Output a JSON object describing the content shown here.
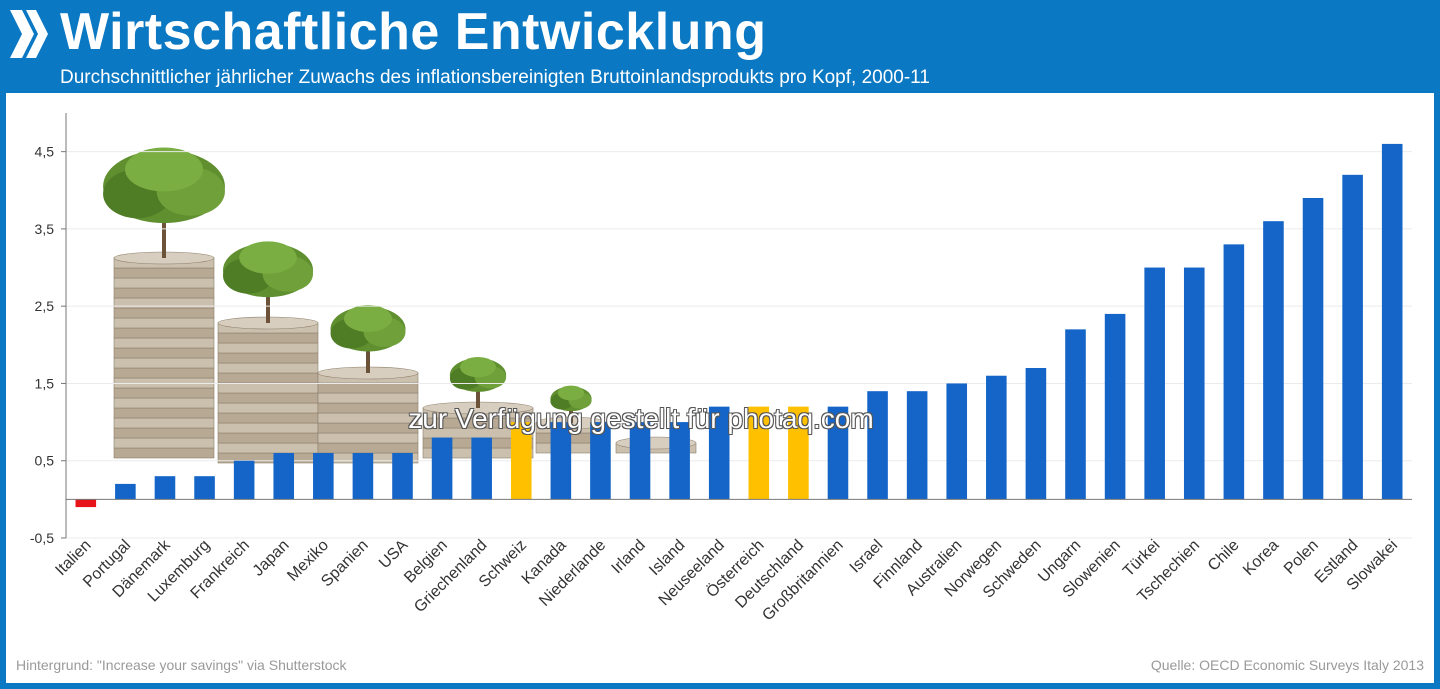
{
  "header": {
    "title": "Wirtschaftliche Entwicklung",
    "subtitle": "Durchschnittlicher jährlicher Zuwachs des inflationsbereinigten Bruttoinlandsprodukts pro Kopf, 2000-11"
  },
  "footer": {
    "credit_left": "Hintergrund: \"Increase your savings\" via Shutterstock",
    "credit_right": "Quelle: OECD  Economic Surveys Italy 2013"
  },
  "watermark": "zur Verfügung gestellt für photaq.com",
  "colors": {
    "frame": "#0a78c2",
    "bar_default": "#1565c8",
    "bar_highlight": "#ffc000",
    "bar_negative": "#e8141c"
  },
  "background_art": "coin-stacks-with-trees",
  "chart_data": {
    "type": "bar",
    "title": "Wirtschaftliche Entwicklung",
    "subtitle": "Durchschnittlicher jährlicher Zuwachs des inflationsbereinigten Bruttoinlandsprodukts pro Kopf, 2000-11",
    "xlabel": "",
    "ylabel": "",
    "ylim": [
      -0.5,
      5
    ],
    "yticks": [
      -0.5,
      0.5,
      1.5,
      2.5,
      3.5,
      4.5
    ],
    "ytick_labels": [
      "-0,5",
      "0,5",
      "1,5",
      "2,5",
      "3,5",
      "4,5"
    ],
    "grid": true,
    "legend": "none",
    "categories": [
      "Italien",
      "Portugal",
      "Dänemark",
      "Luxemburg",
      "Frankreich",
      "Japan",
      "Mexiko",
      "Spanien",
      "USA",
      "Belgien",
      "Griechenland",
      "Schweiz",
      "Kanada",
      "Niederlande",
      "Irland",
      "Island",
      "Neuseeland",
      "Österreich",
      "Deutschland",
      "Großbritannien",
      "Israel",
      "Finnland",
      "Australien",
      "Norwegen",
      "Schweden",
      "Ungarn",
      "Slowenien",
      "Türkei",
      "Tschechien",
      "Chile",
      "Korea",
      "Polen",
      "Estland",
      "Slowakei"
    ],
    "values": [
      -0.1,
      0.2,
      0.3,
      0.3,
      0.5,
      0.6,
      0.6,
      0.6,
      0.6,
      0.8,
      0.8,
      1.0,
      1.0,
      1.0,
      1.0,
      1.0,
      1.2,
      1.2,
      1.2,
      1.2,
      1.4,
      1.4,
      1.5,
      1.6,
      1.7,
      2.2,
      2.4,
      3.0,
      3.0,
      3.3,
      3.6,
      3.9,
      4.2,
      4.6
    ],
    "highlight": {
      "Schweiz": "#ffc000",
      "Österreich": "#ffc000",
      "Deutschland": "#ffc000",
      "Italien": "#e8141c"
    }
  }
}
